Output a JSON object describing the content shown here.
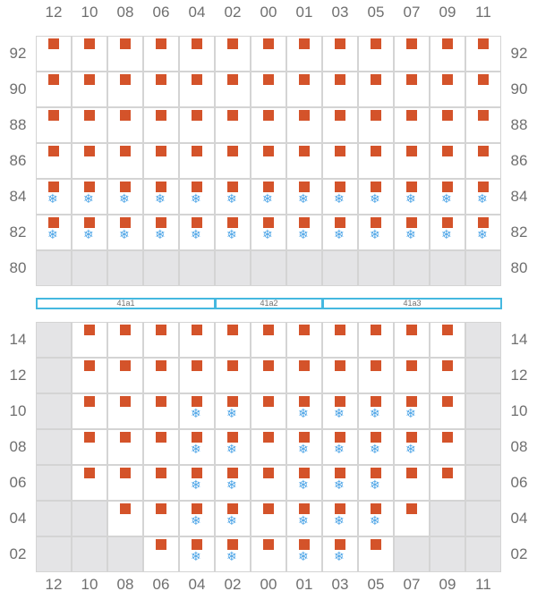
{
  "columns": [
    "12",
    "10",
    "08",
    "06",
    "04",
    "02",
    "00",
    "01",
    "03",
    "05",
    "07",
    "09",
    "11"
  ],
  "top_section": {
    "rows": [
      "92",
      "90",
      "88",
      "86",
      "84",
      "82",
      "80"
    ],
    "cells": [
      [
        "s",
        "s",
        "s",
        "s",
        "s",
        "s",
        "s",
        "s",
        "s",
        "s",
        "s",
        "s",
        "s"
      ],
      [
        "s",
        "s",
        "s",
        "s",
        "s",
        "s",
        "s",
        "s",
        "s",
        "s",
        "s",
        "s",
        "s"
      ],
      [
        "s",
        "s",
        "s",
        "s",
        "s",
        "s",
        "s",
        "s",
        "s",
        "s",
        "s",
        "s",
        "s"
      ],
      [
        "s",
        "s",
        "s",
        "s",
        "s",
        "s",
        "s",
        "s",
        "s",
        "s",
        "s",
        "s",
        "s"
      ],
      [
        "sf",
        "sf",
        "sf",
        "sf",
        "sf",
        "sf",
        "sf",
        "sf",
        "sf",
        "sf",
        "sf",
        "sf",
        "sf"
      ],
      [
        "sf",
        "sf",
        "sf",
        "sf",
        "sf",
        "sf",
        "sf",
        "sf",
        "sf",
        "sf",
        "sf",
        "sf",
        "sf"
      ],
      [
        "x",
        "x",
        "x",
        "x",
        "x",
        "x",
        "x",
        "x",
        "x",
        "x",
        "x",
        "x",
        "x"
      ]
    ]
  },
  "sections": [
    {
      "label": "41a1",
      "start_col": 0,
      "span": 5
    },
    {
      "label": "41a2",
      "start_col": 5,
      "span": 3
    },
    {
      "label": "41a3",
      "start_col": 8,
      "span": 5
    }
  ],
  "bottom_section": {
    "rows": [
      "14",
      "12",
      "10",
      "08",
      "06",
      "04",
      "02"
    ],
    "cells": [
      [
        "x",
        "s",
        "s",
        "s",
        "s",
        "s",
        "s",
        "s",
        "s",
        "s",
        "s",
        "s",
        "x"
      ],
      [
        "x",
        "s",
        "s",
        "s",
        "s",
        "s",
        "s",
        "s",
        "s",
        "s",
        "s",
        "s",
        "x"
      ],
      [
        "x",
        "s",
        "s",
        "s",
        "sf",
        "sf",
        "s",
        "sf",
        "sf",
        "sf",
        "sf",
        "s",
        "x"
      ],
      [
        "x",
        "s",
        "s",
        "s",
        "sf",
        "sf",
        "s",
        "sf",
        "sf",
        "sf",
        "sf",
        "s",
        "x"
      ],
      [
        "x",
        "s",
        "s",
        "s",
        "sf",
        "sf",
        "s",
        "sf",
        "sf",
        "sf",
        "s",
        "s",
        "x"
      ],
      [
        "x",
        "x",
        "s",
        "s",
        "sf",
        "sf",
        "s",
        "sf",
        "sf",
        "sf",
        "s",
        "x",
        "x"
      ],
      [
        "x",
        "x",
        "x",
        "s",
        "sf",
        "sf",
        "s",
        "sf",
        "sf",
        "s",
        "x",
        "x",
        "x"
      ]
    ]
  },
  "legend": {
    "square": {
      "icon": "occupied-square-icon",
      "color": "#d4532a"
    },
    "snowflake": {
      "icon": "snowflake-icon",
      "glyph": "❄",
      "color": "#4aa3e6"
    },
    "empty": {
      "color": "#e4e4e6"
    }
  }
}
